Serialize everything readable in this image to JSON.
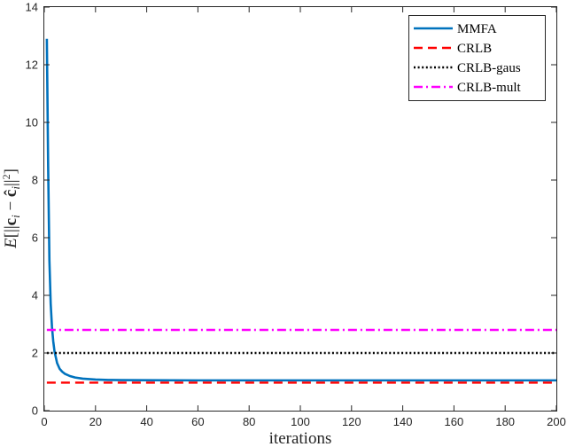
{
  "chart_data": {
    "type": "line",
    "xlabel": "iterations",
    "ylabel": "E[||c_i − ĉ_i||²]",
    "xlim": [
      0,
      200
    ],
    "ylim": [
      0,
      14
    ],
    "x_ticks": [
      "0",
      "20",
      "40",
      "60",
      "80",
      "100",
      "120",
      "140",
      "160",
      "180",
      "200"
    ],
    "y_ticks": [
      "0",
      "2",
      "4",
      "6",
      "8",
      "10",
      "12",
      "14"
    ],
    "grid": false,
    "legend_position": "top-right",
    "series": [
      {
        "name": "MMFA",
        "style": "solid",
        "color": "#0072BD",
        "x": [
          1,
          1.5,
          2,
          2.5,
          3,
          3.5,
          4,
          5,
          6,
          7,
          8,
          10,
          12,
          15,
          20,
          25,
          30,
          40,
          60,
          80,
          100,
          120,
          140,
          160,
          180,
          200
        ],
        "y": [
          12.9,
          8.5,
          5.2,
          3.7,
          2.9,
          2.4,
          2.05,
          1.65,
          1.45,
          1.35,
          1.28,
          1.2,
          1.15,
          1.11,
          1.08,
          1.065,
          1.06,
          1.055,
          1.05,
          1.05,
          1.05,
          1.05,
          1.05,
          1.05,
          1.05,
          1.05
        ]
      },
      {
        "name": "CRLB",
        "style": "dashed",
        "color": "#FF0000",
        "x": [
          1,
          200
        ],
        "y": [
          0.97,
          0.97
        ]
      },
      {
        "name": "CRLB-gaus",
        "style": "dotted",
        "color": "#000000",
        "x": [
          1,
          200
        ],
        "y": [
          2.0,
          2.0
        ]
      },
      {
        "name": "CRLB-mult",
        "style": "dashdot",
        "color": "#FF00FF",
        "x": [
          1,
          200
        ],
        "y": [
          2.8,
          2.8
        ]
      }
    ]
  }
}
